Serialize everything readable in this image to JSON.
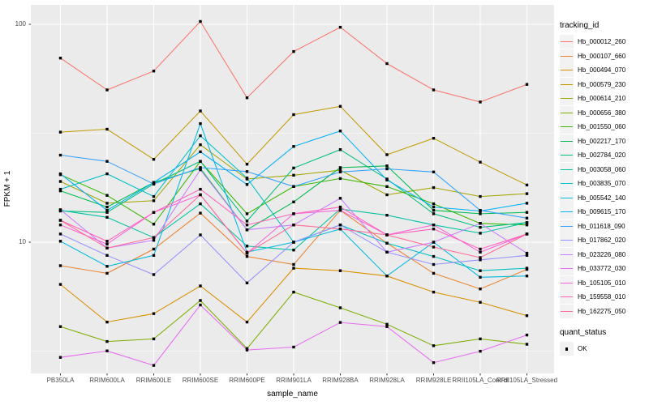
{
  "chart_data": {
    "type": "line",
    "title": "",
    "xlabel": "sample_name",
    "ylabel": "FPKM + 1",
    "y_scale": "log10",
    "y_ticks": [
      100,
      10
    ],
    "y_tick_labels": [
      "100",
      "10"
    ],
    "y_minor_gridlines": [
      31.62,
      3.162
    ],
    "ylim": [
      2.5,
      123
    ],
    "grid": true,
    "panel_bg": "#EBEBEB",
    "grid_color": "#FFFFFF",
    "point_color": "#000000",
    "point_shape": "square",
    "categories": [
      "PB350LA",
      "RRIM600LA",
      "RRIM600LE",
      "RRIM600SE",
      "RRIM600PE",
      "RRIM901LA",
      "RRIM928BA",
      "RRIM928LA",
      "RRIM928LE",
      "RRII105LA_Control",
      "RRII105LA_Stressed"
    ],
    "legend": {
      "title": "tracking_id",
      "position": "right"
    },
    "legend2": {
      "title": "quant_status",
      "items": [
        {
          "label": "OK",
          "marker": "black-square"
        }
      ]
    },
    "series": [
      {
        "name": "Hb_000012_260",
        "color": "#F8766D",
        "values": [
          70,
          50,
          61,
          103,
          46,
          75,
          97,
          66,
          50,
          44,
          53
        ]
      },
      {
        "name": "Hb_000107_660",
        "color": "#EA8331",
        "values": [
          7.8,
          7.2,
          9.3,
          13.6,
          8.6,
          7.9,
          14.0,
          9.9,
          7.2,
          6.1,
          7.5
        ]
      },
      {
        "name": "Hb_000494_070",
        "color": "#D89000",
        "values": [
          6.4,
          4.3,
          4.7,
          6.3,
          4.3,
          7.6,
          7.4,
          7.0,
          5.9,
          5.3,
          4.6
        ]
      },
      {
        "name": "Hb_000579_230",
        "color": "#C09B00",
        "values": [
          32,
          33,
          24,
          40,
          22.8,
          38.5,
          42,
          25.2,
          30,
          23.3,
          18.3
        ]
      },
      {
        "name": "Hb_000614_210",
        "color": "#A3A500",
        "values": [
          19,
          15.1,
          15.5,
          28,
          19.5,
          20.3,
          21.4,
          16.5,
          17.8,
          16.2,
          16.7
        ]
      },
      {
        "name": "Hb_000656_380",
        "color": "#7CAE00",
        "values": [
          4.1,
          3.5,
          3.6,
          5.4,
          3.25,
          5.9,
          5.0,
          4.2,
          3.35,
          3.6,
          3.4
        ]
      },
      {
        "name": "Hb_001550_060",
        "color": "#39B600",
        "values": [
          20.4,
          16.4,
          12.1,
          23.5,
          13.5,
          18.0,
          19.6,
          18.0,
          15.0,
          12.2,
          12.0
        ]
      },
      {
        "name": "Hb_002217_170",
        "color": "#00BB4E",
        "values": [
          17.2,
          14.5,
          18.8,
          21.8,
          11.4,
          15.3,
          22.0,
          22.4,
          14.0,
          13.5,
          13.7
        ]
      },
      {
        "name": "Hb_002784_020",
        "color": "#00BF7D",
        "values": [
          13.9,
          13.7,
          18.5,
          23.5,
          12.5,
          21.9,
          26.6,
          19.5,
          13.5,
          11.7,
          12.3
        ]
      },
      {
        "name": "Hb_003058_060",
        "color": "#00C1A3",
        "values": [
          14.0,
          13.0,
          10.5,
          15.0,
          9.6,
          9.2,
          14.2,
          13.3,
          12.0,
          11.0,
          12.3
        ]
      },
      {
        "name": "Hb_003835_070",
        "color": "#00BFC4",
        "values": [
          17.5,
          20.6,
          16.2,
          30.8,
          19.7,
          10.0,
          12.0,
          9.9,
          8.6,
          7.4,
          7.6
        ]
      },
      {
        "name": "Hb_005542_140",
        "color": "#00BAE0",
        "values": [
          10.1,
          7.75,
          8.7,
          35.0,
          9.0,
          10.0,
          11.5,
          7.0,
          10.0,
          6.9,
          7.0
        ]
      },
      {
        "name": "Hb_009615_170",
        "color": "#00B0F6",
        "values": [
          20.6,
          14.0,
          18.8,
          26.0,
          18.4,
          27.5,
          32.4,
          19.3,
          14.5,
          13.9,
          15.1
        ]
      },
      {
        "name": "Hb_011618_090",
        "color": "#35A2FF",
        "values": [
          25.1,
          23.5,
          18.5,
          22.0,
          21.1,
          18.0,
          21.0,
          21.7,
          21.0,
          14.0,
          12.9
        ]
      },
      {
        "name": "Hb_017862_020",
        "color": "#9590FF",
        "values": [
          10.9,
          8.7,
          7.1,
          10.8,
          6.5,
          10.0,
          12.0,
          9.0,
          7.9,
          8.3,
          8.7
        ]
      },
      {
        "name": "Hb_023226_080",
        "color": "#C77CFF",
        "values": [
          14.1,
          9.4,
          10.2,
          21.5,
          11.4,
          12.0,
          15.9,
          9.0,
          10.0,
          12.2,
          8.9
        ]
      },
      {
        "name": "Hb_033772_030",
        "color": "#E76BF3",
        "values": [
          2.96,
          3.17,
          2.72,
          5.15,
          3.2,
          3.3,
          4.28,
          4.1,
          2.8,
          3.16,
          3.75
        ]
      },
      {
        "name": "Hb_105105_010",
        "color": "#FA62DB",
        "values": [
          12.0,
          9.8,
          13.7,
          16.5,
          8.9,
          13.5,
          14.0,
          10.8,
          12.0,
          9.0,
          10.9
        ]
      },
      {
        "name": "Hb_159558_010",
        "color": "#FF62BC",
        "values": [
          12.6,
          10.1,
          13.7,
          17.5,
          12.0,
          13.5,
          14.5,
          10.8,
          11.5,
          9.3,
          10.9
        ]
      },
      {
        "name": "Hb_162275_050",
        "color": "#FF6A98",
        "values": [
          12.6,
          9.4,
          10.5,
          16.5,
          8.9,
          12.0,
          11.5,
          10.8,
          9.5,
          8.5,
          10.9
        ]
      }
    ]
  }
}
